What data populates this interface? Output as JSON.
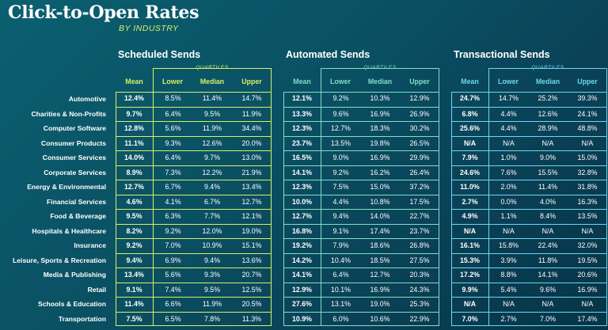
{
  "page": {
    "title": "Click-to-Open Rates",
    "subtitle": "BY INDUSTRY"
  },
  "columns": {
    "mean": "Mean",
    "lower": "Lower",
    "median": "Median",
    "upper": "Upper",
    "quartiles": "QUARTILES"
  },
  "colors": {
    "scheduled": "#d8f06a",
    "automated": "#7fe0c8",
    "transactional": "#6dd8ee",
    "text": "#ffffff"
  },
  "chart_data": {
    "type": "table",
    "title": "Click-to-Open Rates",
    "subtitle": "BY INDUSTRY",
    "industries": [
      "Automotive",
      "Charities & Non-Profits",
      "Computer Software",
      "Consumer Products",
      "Consumer Services",
      "Corporate Services",
      "Energy & Environmental",
      "Financial Services",
      "Food & Beverage",
      "Hospitals & Healthcare",
      "Insurance",
      "Leisure, Sports & Recreation",
      "Media & Publishing",
      "Retail",
      "Schools & Education",
      "Transportation"
    ],
    "groups": [
      {
        "key": "scheduled",
        "name": "Scheduled Sends",
        "rows": [
          [
            "12.4%",
            "8.5%",
            "11.4%",
            "14.7%"
          ],
          [
            "9.7%",
            "6.4%",
            "9.5%",
            "11.9%"
          ],
          [
            "12.8%",
            "5.6%",
            "11.9%",
            "34.4%"
          ],
          [
            "11.1%",
            "9.3%",
            "12.6%",
            "20.0%"
          ],
          [
            "14.0%",
            "6.4%",
            "9.7%",
            "13.0%"
          ],
          [
            "8.9%",
            "7.3%",
            "12.2%",
            "21.9%"
          ],
          [
            "12.7%",
            "6.7%",
            "9.4%",
            "13.4%"
          ],
          [
            "4.6%",
            "4.1%",
            "6.7%",
            "12.7%"
          ],
          [
            "9.5%",
            "6.3%",
            "7.7%",
            "12.1%"
          ],
          [
            "8.2%",
            "9.2%",
            "12.0%",
            "19.0%"
          ],
          [
            "9.2%",
            "7.0%",
            "10.9%",
            "15.1%"
          ],
          [
            "9.4%",
            "6.9%",
            "9.4%",
            "13.6%"
          ],
          [
            "13.4%",
            "5.6%",
            "9.3%",
            "20.7%"
          ],
          [
            "9.1%",
            "7.4%",
            "9.5%",
            "12.5%"
          ],
          [
            "11.4%",
            "6.6%",
            "11.9%",
            "20.5%"
          ],
          [
            "7.5%",
            "6.5%",
            "7.8%",
            "11.3%"
          ]
        ]
      },
      {
        "key": "automated",
        "name": "Automated Sends",
        "rows": [
          [
            "12.1%",
            "9.2%",
            "10.3%",
            "12.9%"
          ],
          [
            "13.3%",
            "9.6%",
            "16.9%",
            "26.9%"
          ],
          [
            "12.3%",
            "12.7%",
            "18.3%",
            "30.2%"
          ],
          [
            "23.7%",
            "13.5%",
            "19.8%",
            "26.5%"
          ],
          [
            "16.5%",
            "9.0%",
            "16.9%",
            "29.9%"
          ],
          [
            "14.1%",
            "9.2%",
            "16.2%",
            "26.4%"
          ],
          [
            "12.3%",
            "7.5%",
            "15.0%",
            "37.2%"
          ],
          [
            "10.0%",
            "4.4%",
            "10.8%",
            "17.5%"
          ],
          [
            "12.7%",
            "9.4%",
            "14.0%",
            "22.7%"
          ],
          [
            "16.8%",
            "9.1%",
            "17.4%",
            "23.7%"
          ],
          [
            "19.2%",
            "7.9%",
            "18.6%",
            "26.8%"
          ],
          [
            "14.2%",
            "10.4%",
            "18.5%",
            "27.5%"
          ],
          [
            "14.1%",
            "6.4%",
            "12.7%",
            "20.3%"
          ],
          [
            "12.9%",
            "10.1%",
            "16.9%",
            "24.3%"
          ],
          [
            "27.6%",
            "13.1%",
            "19.0%",
            "25.3%"
          ],
          [
            "10.9%",
            "6.0%",
            "10.6%",
            "22.9%"
          ]
        ]
      },
      {
        "key": "transactional",
        "name": "Transactional Sends",
        "rows": [
          [
            "24.7%",
            "14.7%",
            "25.2%",
            "39.3%"
          ],
          [
            "6.8%",
            "4.4%",
            "12.6%",
            "24.1%"
          ],
          [
            "25.6%",
            "4.4%",
            "28.9%",
            "48.8%"
          ],
          [
            "N/A",
            "N/A",
            "N/A",
            "N/A"
          ],
          [
            "7.9%",
            "1.0%",
            "9.0%",
            "15.0%"
          ],
          [
            "24.6%",
            "7.6%",
            "15.5%",
            "32.8%"
          ],
          [
            "11.0%",
            "2.0%",
            "11.4%",
            "31.8%"
          ],
          [
            "2.7%",
            "0.0%",
            "4.0%",
            "16.3%"
          ],
          [
            "4.9%",
            "1.1%",
            "8.4%",
            "13.5%"
          ],
          [
            "N/A",
            "N/A",
            "N/A",
            "N/A"
          ],
          [
            "16.1%",
            "15.8%",
            "22.4%",
            "32.0%"
          ],
          [
            "15.3%",
            "3.9%",
            "11.8%",
            "19.5%"
          ],
          [
            "17.2%",
            "8.8%",
            "14.1%",
            "20.6%"
          ],
          [
            "9.9%",
            "5.4%",
            "9.6%",
            "16.9%"
          ],
          [
            "N/A",
            "N/A",
            "N/A",
            "N/A"
          ],
          [
            "7.0%",
            "2.7%",
            "7.0%",
            "17.4%"
          ]
        ]
      }
    ]
  }
}
